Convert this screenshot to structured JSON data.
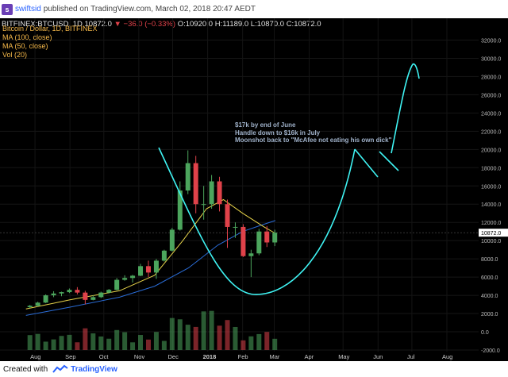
{
  "header": {
    "username": "swiftsid",
    "published_text": "published on TradingView.com, March 02, 2018 20:47 AEDT"
  },
  "ohlc": {
    "symbol": "BITFINEX:BTCUSD, 1D",
    "last": "10872.0",
    "change": "−36.0 (−0.33%)",
    "open": "O:10920.0",
    "high": "H:11189.0",
    "low": "L:10870.0",
    "close": "C:10872.0"
  },
  "legend": {
    "title": "Bitcoin / Dollar, 1D, BITFINEX",
    "ma100": "MA (100, close)",
    "ma50": "MA (50, close)",
    "vol": "Vol (20)"
  },
  "annotation": {
    "line1": "$17k by end of June",
    "line2": "Handle down to $16k in July",
    "line3": "Moonshot back to \"McAfee not eating his own dick\""
  },
  "footer": {
    "created_with": "Created with",
    "brand": "TradingView"
  },
  "colors": {
    "background": "#000000",
    "up_candle": "#4ca55d",
    "down_candle": "#e0424a",
    "ma100": "#2a6cd6",
    "ma50": "#e6d34a",
    "vol_ma": "#c0413a",
    "hand_drawn": "#3ff3f3",
    "price_label_bg": "#ffffff"
  },
  "chart_data": {
    "type": "candlestick",
    "title": "Bitcoin / Dollar, 1D, BITFINEX",
    "x_tick_labels": [
      "Aug",
      "Sep",
      "Oct",
      "Nov",
      "Dec",
      "2018",
      "Feb",
      "Mar",
      "Apr",
      "May",
      "Jun",
      "Jul",
      "Aug"
    ],
    "y_tick_labels": [
      "32000.0",
      "30000.0",
      "28000.0",
      "26000.0",
      "24000.0",
      "22000.0",
      "20000.0",
      "18000.0",
      "16000.0",
      "14000.0",
      "12000.0",
      "10000.0",
      "8000.0",
      "6000.0",
      "4000.0",
      "2000.0",
      "0.0",
      "-2000.0"
    ],
    "ylim": [
      -2000,
      33000
    ],
    "last_price_label": "10872.0",
    "series": [
      {
        "name": "BTCUSD close (approx. weekly)",
        "x": [
          "2017-07-24",
          "2017-07-31",
          "2017-08-07",
          "2017-08-14",
          "2017-08-21",
          "2017-08-28",
          "2017-09-04",
          "2017-09-11",
          "2017-09-18",
          "2017-09-25",
          "2017-10-02",
          "2017-10-09",
          "2017-10-16",
          "2017-10-23",
          "2017-10-30",
          "2017-11-06",
          "2017-11-13",
          "2017-11-20",
          "2017-11-27",
          "2017-12-04",
          "2017-12-11",
          "2017-12-18",
          "2017-12-25",
          "2018-01-01",
          "2018-01-08",
          "2018-01-15",
          "2018-01-22",
          "2018-01-29",
          "2018-02-05",
          "2018-02-12",
          "2018-02-19",
          "2018-02-26"
        ],
        "open": [
          2700,
          2850,
          3200,
          4000,
          4200,
          4350,
          4600,
          4300,
          3500,
          3800,
          4300,
          4600,
          5700,
          5900,
          6150,
          7200,
          6500,
          7800,
          8900,
          11200,
          15500,
          18500,
          14000,
          14000,
          16500,
          14000,
          11500,
          11500,
          8300,
          8600,
          11000,
          9800
        ],
        "high": [
          2950,
          3300,
          4100,
          4450,
          4400,
          4750,
          4900,
          4500,
          4000,
          4400,
          4700,
          5900,
          6200,
          6250,
          7450,
          7800,
          8000,
          9000,
          11400,
          16500,
          19900,
          19300,
          16000,
          17200,
          17000,
          14500,
          12000,
          11800,
          9000,
          11300,
          11600,
          11200
        ],
        "low": [
          2600,
          2750,
          3150,
          3800,
          3900,
          4250,
          4100,
          3000,
          3450,
          3700,
          4200,
          4550,
          5600,
          5400,
          6100,
          6000,
          5800,
          7700,
          8800,
          11100,
          15100,
          13000,
          12300,
          13500,
          13200,
          9200,
          10300,
          8200,
          6000,
          8400,
          9300,
          9400
        ],
        "close": [
          2850,
          3200,
          4000,
          4200,
          4350,
          4600,
          4300,
          3500,
          3800,
          4300,
          4600,
          5700,
          5900,
          6150,
          7200,
          6500,
          7800,
          8900,
          11200,
          15500,
          18500,
          14000,
          14000,
          16500,
          14000,
          11500,
          11500,
          8300,
          8600,
          11000,
          9800,
          10872
        ]
      },
      {
        "name": "MA (100, close)",
        "x": [
          "2017-07-24",
          "2017-09-01",
          "2017-10-15",
          "2017-11-15",
          "2017-12-15",
          "2018-01-10",
          "2018-02-01",
          "2018-02-20",
          "2018-03-02"
        ],
        "y": [
          1800,
          2700,
          3800,
          5000,
          7000,
          9500,
          11000,
          11800,
          12200
        ]
      },
      {
        "name": "MA (50, close)",
        "x": [
          "2017-07-24",
          "2017-09-01",
          "2017-10-15",
          "2017-11-15",
          "2017-12-10",
          "2017-12-31",
          "2018-01-15",
          "2018-02-01",
          "2018-02-20",
          "2018-03-02"
        ],
        "y": [
          2500,
          3500,
          4500,
          6200,
          10000,
          13500,
          14500,
          13000,
          11500,
          10800
        ]
      }
    ],
    "projection_text": "$17k by end of June"
  }
}
